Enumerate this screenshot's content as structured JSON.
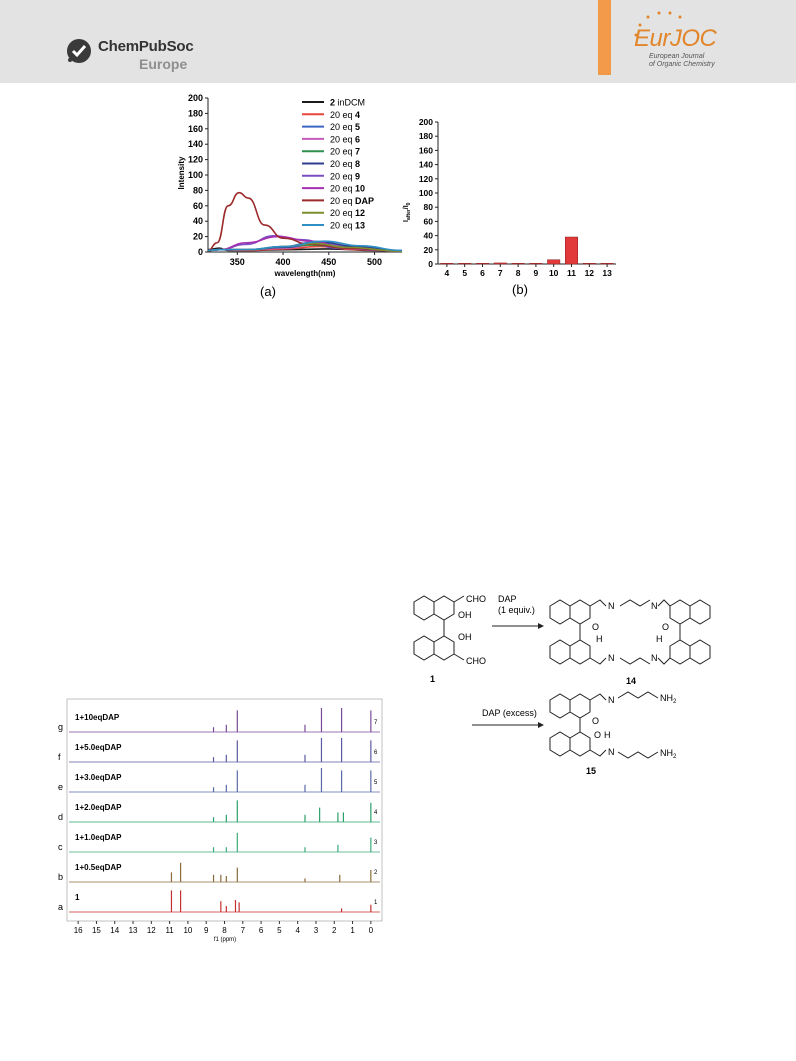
{
  "header": {
    "publisher_name": "ChemPubSoc",
    "publisher_sub": "Europe",
    "journal_logo_text": "EurJOC",
    "journal_sub1": "European Journal",
    "journal_sub2": "of Organic Chemistry"
  },
  "figure_a": {
    "caption": "(a)",
    "legend": [
      {
        "prefix": "2",
        "text": " inDCM",
        "color": "#1a1a1a"
      },
      {
        "prefix": "",
        "text": "20 eq ",
        "bold": "4",
        "color": "#e8463d"
      },
      {
        "prefix": "",
        "text": "20 eq ",
        "bold": "5",
        "color": "#3a66c4"
      },
      {
        "prefix": "",
        "text": "20 eq ",
        "bold": "6",
        "color": "#c45bbd"
      },
      {
        "prefix": "",
        "text": "20 eq ",
        "bold": "7",
        "color": "#2f8f4e"
      },
      {
        "prefix": "",
        "text": "20 eq ",
        "bold": "8",
        "color": "#2e3f8f"
      },
      {
        "prefix": "",
        "text": "20 eq ",
        "bold": "9",
        "color": "#7a4fc4"
      },
      {
        "prefix": "",
        "text": "20 eq ",
        "bold": "10",
        "color": "#a62fb0"
      },
      {
        "prefix": "",
        "text": "20 eq ",
        "bold": "DAP",
        "color": "#9c2a2a"
      },
      {
        "prefix": "",
        "text": "20 eq ",
        "bold": "12",
        "color": "#7b8f2f"
      },
      {
        "prefix": "",
        "text": "20 eq ",
        "bold": "13",
        "color": "#2f8fc4"
      }
    ]
  },
  "figure_b": {
    "caption": "(b)",
    "ylabel_main": "I",
    "ylabel_sub": "after",
    "ylabel_tail": "/I",
    "ylabel_sub2": "0"
  },
  "chart_data": [
    {
      "type": "line",
      "xlabel": "wavelength(nm)",
      "ylabel": "Intensity",
      "xlim": [
        318,
        530
      ],
      "ylim": [
        0,
        200
      ],
      "xticks": [
        350,
        400,
        450,
        500
      ],
      "yticks": [
        0,
        20,
        40,
        60,
        80,
        100,
        120,
        140,
        160,
        180,
        200
      ],
      "series": [
        {
          "name": "2 inDCM",
          "color": "#1a1a1a",
          "x": [
            318,
            330,
            340,
            360,
            400,
            450,
            500,
            530
          ],
          "y": [
            3,
            5,
            2,
            2,
            3,
            4,
            2,
            1
          ]
        },
        {
          "name": "20 eq 4",
          "color": "#e8463d",
          "x": [
            318,
            330,
            360,
            400,
            440,
            480,
            530
          ],
          "y": [
            2,
            3,
            2,
            4,
            7,
            3,
            1
          ]
        },
        {
          "name": "20 eq 5",
          "color": "#3a66c4",
          "x": [
            318,
            330,
            360,
            400,
            435,
            470,
            530
          ],
          "y": [
            2,
            3,
            3,
            7,
            13,
            8,
            2
          ]
        },
        {
          "name": "20 eq 6",
          "color": "#c45bbd",
          "x": [
            318,
            330,
            360,
            400,
            440,
            480,
            530
          ],
          "y": [
            2,
            3,
            3,
            5,
            10,
            6,
            1
          ]
        },
        {
          "name": "20 eq 7",
          "color": "#2f8f4e",
          "x": [
            318,
            330,
            360,
            400,
            430,
            470,
            530
          ],
          "y": [
            2,
            3,
            3,
            6,
            9,
            5,
            1
          ]
        },
        {
          "name": "20 eq 8",
          "color": "#2e3f8f",
          "x": [
            318,
            330,
            360,
            400,
            440,
            480,
            530
          ],
          "y": [
            2,
            3,
            3,
            6,
            13,
            7,
            1
          ]
        },
        {
          "name": "20 eq 9",
          "color": "#7a4fc4",
          "x": [
            318,
            330,
            360,
            390,
            420,
            460,
            530
          ],
          "y": [
            2,
            3,
            10,
            21,
            16,
            5,
            1
          ]
        },
        {
          "name": "20 eq 10",
          "color": "#a62fb0",
          "x": [
            318,
            330,
            360,
            395,
            430,
            470,
            530
          ],
          "y": [
            2,
            3,
            12,
            20,
            14,
            5,
            1
          ]
        },
        {
          "name": "20 eq DAP",
          "color": "#9c2a2a",
          "x": [
            318,
            328,
            340,
            352,
            362,
            380,
            400,
            430,
            470,
            530
          ],
          "y": [
            2,
            12,
            60,
            77,
            70,
            35,
            18,
            10,
            5,
            1
          ]
        },
        {
          "name": "20 eq 12",
          "color": "#7b8f2f",
          "x": [
            318,
            330,
            360,
            400,
            435,
            470,
            530
          ],
          "y": [
            2,
            3,
            3,
            7,
            11,
            6,
            1
          ]
        },
        {
          "name": "20 eq 13",
          "color": "#2f8fc4",
          "x": [
            318,
            330,
            360,
            400,
            445,
            485,
            530
          ],
          "y": [
            2,
            3,
            3,
            7,
            14,
            8,
            2
          ]
        }
      ]
    },
    {
      "type": "bar",
      "categories": [
        "4",
        "5",
        "6",
        "7",
        "8",
        "9",
        "10",
        "11",
        "12",
        "13"
      ],
      "values": [
        1,
        1,
        1,
        1.5,
        1,
        1,
        6,
        38,
        1,
        1
      ],
      "ylim": [
        0,
        200
      ],
      "yticks": [
        0,
        20,
        40,
        60,
        80,
        100,
        120,
        140,
        160,
        180,
        200
      ],
      "color": "#e23a3a"
    },
    {
      "type": "line",
      "xlabel": "f1 (ppm)",
      "xlim": [
        16.5,
        -0.5
      ],
      "xticks": [
        16,
        15,
        14,
        13,
        12,
        11,
        10,
        9,
        8,
        7,
        6,
        5,
        4,
        3,
        2,
        1,
        0
      ],
      "series": [
        {
          "name": "1",
          "label": "a",
          "index": "1",
          "color": "#c2302f",
          "peaks": [
            [
              10.9,
              0.9
            ],
            [
              10.4,
              0.9
            ],
            [
              8.2,
              0.45
            ],
            [
              7.9,
              0.25
            ],
            [
              7.4,
              0.5
            ],
            [
              7.2,
              0.4
            ],
            [
              1.6,
              0.15
            ],
            [
              0,
              0.3
            ]
          ]
        },
        {
          "name": "1+0.5eqDAP",
          "label": "b",
          "index": "2",
          "color": "#8a6a3a",
          "peaks": [
            [
              10.9,
              0.4
            ],
            [
              10.4,
              0.8
            ],
            [
              8.6,
              0.3
            ],
            [
              8.2,
              0.3
            ],
            [
              7.9,
              0.25
            ],
            [
              7.3,
              0.6
            ],
            [
              3.6,
              0.15
            ],
            [
              1.7,
              0.3
            ],
            [
              0,
              0.5
            ]
          ]
        },
        {
          "name": "1+1.0eqDAP",
          "label": "c",
          "index": "3",
          "color": "#3aaa78",
          "peaks": [
            [
              8.6,
              0.2
            ],
            [
              7.9,
              0.2
            ],
            [
              7.3,
              0.8
            ],
            [
              3.6,
              0.2
            ],
            [
              1.8,
              0.3
            ],
            [
              0,
              0.6
            ]
          ]
        },
        {
          "name": "1+2.0eqDAP",
          "label": "d",
          "index": "4",
          "color": "#2aa06a",
          "peaks": [
            [
              8.6,
              0.2
            ],
            [
              7.9,
              0.3
            ],
            [
              7.3,
              0.9
            ],
            [
              3.6,
              0.3
            ],
            [
              2.8,
              0.6
            ],
            [
              1.8,
              0.4
            ],
            [
              1.5,
              0.4
            ],
            [
              0,
              0.8
            ]
          ]
        },
        {
          "name": "1+3.0eqDAP",
          "label": "e",
          "index": "5",
          "color": "#5a6aa8",
          "peaks": [
            [
              8.6,
              0.2
            ],
            [
              7.9,
              0.3
            ],
            [
              7.3,
              0.9
            ],
            [
              3.6,
              0.3
            ],
            [
              2.7,
              1.0
            ],
            [
              1.6,
              0.9
            ],
            [
              0,
              0.9
            ]
          ]
        },
        {
          "name": "1+5.0eqDAP",
          "label": "f",
          "index": "6",
          "color": "#5a5aa0",
          "peaks": [
            [
              8.6,
              0.2
            ],
            [
              7.9,
              0.3
            ],
            [
              7.3,
              0.9
            ],
            [
              3.6,
              0.3
            ],
            [
              2.7,
              1.0
            ],
            [
              1.6,
              1.0
            ],
            [
              0,
              0.9
            ]
          ]
        },
        {
          "name": "1+10eqDAP",
          "label": "g",
          "index": "7",
          "color": "#7a4a9a",
          "peaks": [
            [
              8.6,
              0.2
            ],
            [
              7.9,
              0.3
            ],
            [
              7.3,
              0.9
            ],
            [
              3.6,
              0.3
            ],
            [
              2.7,
              1.0
            ],
            [
              1.6,
              1.0
            ],
            [
              0,
              0.9
            ]
          ]
        }
      ]
    }
  ],
  "scheme": {
    "reagent1_line1": "DAP",
    "reagent1_line2": "(1 equiv.)",
    "reagent2": "DAP (excess)",
    "compound_1": "1",
    "compound_14": "14",
    "compound_15": "15",
    "cho": "CHO",
    "oh": "OH",
    "o": "O",
    "h": "H",
    "n": "N",
    "nh2": "NH",
    "two": "2"
  }
}
